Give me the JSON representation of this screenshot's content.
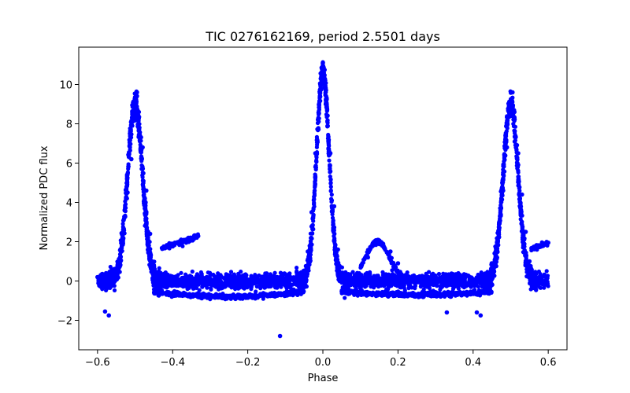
{
  "chart_data": {
    "type": "scatter",
    "title": "TIC 0276162169, period 2.5501 days",
    "xlabel": "Phase",
    "ylabel": "Normalized PDC flux",
    "xlim": [
      -0.65,
      0.65
    ],
    "ylim": [
      -3.5,
      11.9
    ],
    "grid": false,
    "x_ticks": [
      -0.6,
      -0.4,
      -0.2,
      0.0,
      0.2,
      0.4,
      0.6
    ],
    "x_tick_labels": [
      "−0.6",
      "−0.4",
      "−0.2",
      "0.0",
      "0.2",
      "0.4",
      "0.6"
    ],
    "y_ticks": [
      -2,
      0,
      2,
      4,
      6,
      8,
      10
    ],
    "y_tick_labels": [
      "−2",
      "0",
      "2",
      "4",
      "6",
      "8",
      "10"
    ],
    "marker_color": "#0000ff",
    "series": [
      {
        "name": "flux",
        "description_points": "phase-folded light curve with peaks near phase -0.5, 0.0 and 0.5",
        "points": [
          [
            -0.6,
            0.2
          ],
          [
            -0.59,
            -0.3
          ],
          [
            -0.58,
            -1.55
          ],
          [
            -0.57,
            -1.75
          ],
          [
            -0.56,
            0.0
          ],
          [
            -0.55,
            0.3
          ],
          [
            -0.54,
            1.2
          ],
          [
            -0.53,
            2.6
          ],
          [
            -0.52,
            4.5
          ],
          [
            -0.51,
            6.2
          ],
          [
            -0.5,
            8.3
          ],
          [
            -0.495,
            9.6
          ],
          [
            -0.49,
            8.6
          ],
          [
            -0.48,
            6.8
          ],
          [
            -0.47,
            4.6
          ],
          [
            -0.46,
            2.4
          ],
          [
            -0.45,
            0.8
          ],
          [
            -0.44,
            0.2
          ],
          [
            -0.42,
            1.7
          ],
          [
            -0.4,
            1.85
          ],
          [
            -0.38,
            2.0
          ],
          [
            -0.36,
            2.15
          ],
          [
            -0.34,
            2.3
          ],
          [
            -0.3,
            0.0
          ],
          [
            -0.25,
            -0.1
          ],
          [
            -0.2,
            -0.05
          ],
          [
            -0.15,
            0.05
          ],
          [
            -0.114,
            -2.8
          ],
          [
            -0.1,
            0.0
          ],
          [
            -0.05,
            0.2
          ],
          [
            -0.04,
            1.5
          ],
          [
            -0.03,
            3.5
          ],
          [
            -0.02,
            6.5
          ],
          [
            -0.01,
            9.0
          ],
          [
            0.0,
            11.1
          ],
          [
            0.01,
            9.3
          ],
          [
            0.02,
            6.5
          ],
          [
            0.03,
            3.8
          ],
          [
            0.04,
            1.6
          ],
          [
            0.05,
            0.3
          ],
          [
            0.1,
            0.1
          ],
          [
            0.12,
            1.2
          ],
          [
            0.14,
            2.0
          ],
          [
            0.16,
            1.9
          ],
          [
            0.18,
            1.5
          ],
          [
            0.2,
            0.9
          ],
          [
            0.22,
            0.3
          ],
          [
            0.25,
            0.0
          ],
          [
            0.3,
            -0.1
          ],
          [
            0.33,
            -1.6
          ],
          [
            0.35,
            0.0
          ],
          [
            0.4,
            0.1
          ],
          [
            0.41,
            -1.6
          ],
          [
            0.42,
            -1.75
          ],
          [
            0.45,
            0.3
          ],
          [
            0.46,
            1.5
          ],
          [
            0.47,
            3.0
          ],
          [
            0.48,
            4.6
          ],
          [
            0.49,
            6.8
          ],
          [
            0.5,
            8.4
          ],
          [
            0.505,
            9.6
          ],
          [
            0.51,
            8.6
          ],
          [
            0.52,
            6.5
          ],
          [
            0.53,
            4.4
          ],
          [
            0.54,
            2.5
          ],
          [
            0.55,
            1.0
          ],
          [
            0.56,
            0.2
          ],
          [
            0.57,
            1.6
          ],
          [
            0.58,
            1.75
          ],
          [
            0.59,
            1.9
          ],
          [
            0.6,
            1.95
          ]
        ]
      }
    ]
  }
}
